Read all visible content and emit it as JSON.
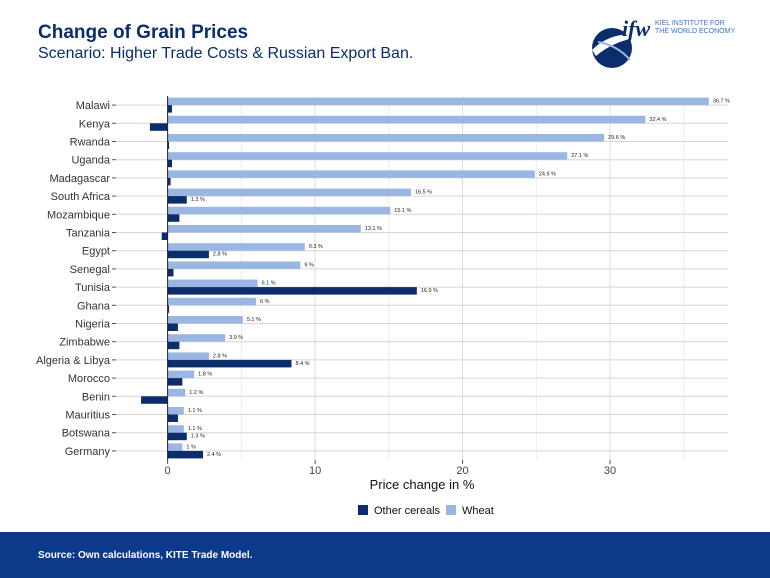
{
  "header": {
    "title": "Change of Grain Prices",
    "subtitle": "Scenario: Higher Trade Costs & Russian Export Ban.",
    "logo_mark": "ifw",
    "logo_line1": "KIEL INSTITUTE FOR",
    "logo_line2": "THE WORLD ECONOMY"
  },
  "footer": {
    "source": "Source: Own calculations, KITE Trade Model."
  },
  "colors": {
    "wheat": "#9ab7e3",
    "other": "#0b2d6b",
    "footer": "#0c3a8a"
  },
  "chart_data": {
    "type": "bar",
    "orientation": "horizontal",
    "categories": [
      "Malawi",
      "Kenya",
      "Rwanda",
      "Uganda",
      "Madagascar",
      "South Africa",
      "Mozambique",
      "Tanzania",
      "Egypt",
      "Senegal",
      "Tunisia",
      "Ghana",
      "Nigeria",
      "Zimbabwe",
      "Algeria & Libya",
      "Morocco",
      "Benin",
      "Mauritius",
      "Botswana",
      "Germany"
    ],
    "series": [
      {
        "name": "Wheat",
        "values": [
          36.7,
          32.4,
          29.6,
          27.1,
          24.9,
          16.5,
          15.1,
          13.1,
          9.3,
          9.0,
          6.1,
          6.0,
          5.1,
          3.9,
          2.8,
          1.8,
          1.2,
          1.1,
          1.1,
          1.0
        ],
        "labels": [
          "36.7 %",
          "32.4 %",
          "29.6 %",
          "27.1 %",
          "24.9 %",
          "16.5 %",
          "15.1 %",
          "13.1 %",
          "9.3 %",
          "9 %",
          "6.1 %",
          "6 %",
          "5.1 %",
          "3.9 %",
          "2.8 %",
          "1.8 %",
          "1.2 %",
          "1.1 %",
          "1.1 %",
          "1 %"
        ]
      },
      {
        "name": "Other cereals",
        "values": [
          0.3,
          -1.2,
          0.1,
          0.3,
          0.2,
          1.3,
          0.8,
          -0.4,
          2.8,
          0.4,
          16.9,
          0.1,
          0.7,
          0.8,
          8.4,
          1.0,
          -1.8,
          0.7,
          1.3,
          2.4
        ],
        "labels": [
          "",
          "",
          "",
          "",
          "",
          "1.3 %",
          "",
          "",
          "2.8 %",
          "",
          "16.9 %",
          "",
          "",
          "",
          "8.4 %",
          "",
          "",
          "",
          "1.3 %",
          "2.4 %"
        ]
      }
    ],
    "xlabel": "Price change in %",
    "xlim": [
      -3.5,
      38
    ],
    "xticks": [
      0,
      10,
      20,
      30
    ],
    "xtick_labels": [
      "0",
      "10",
      "20",
      "30"
    ],
    "grid": true,
    "legend_position": "bottom"
  }
}
